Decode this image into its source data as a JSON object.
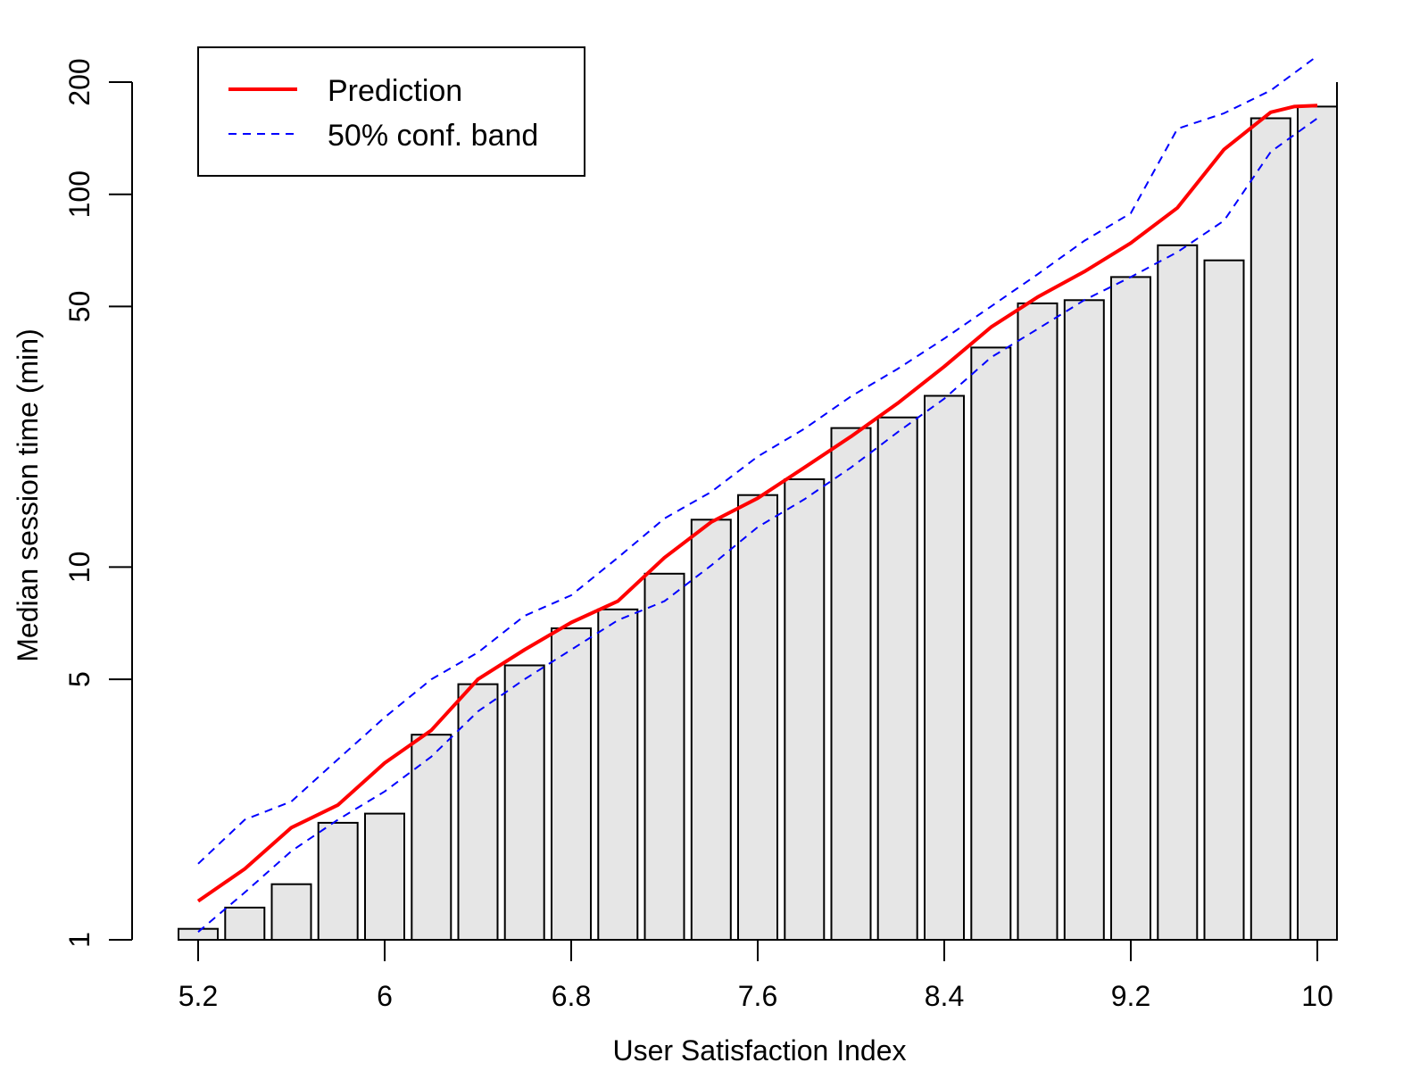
{
  "chart_data": {
    "type": "bar",
    "title": "",
    "xlabel": "User Satisfaction Index",
    "ylabel": "Median session time (min)",
    "y_scale": "log",
    "xlim": [
      5.0,
      10.1
    ],
    "ylim": [
      1,
      220
    ],
    "x_ticks": [
      5.2,
      6,
      6.8,
      7.6,
      8.4,
      9.2,
      10
    ],
    "x_tick_labels": [
      "5.2",
      "6",
      "6.8",
      "7.6",
      "8.4",
      "9.2",
      "10"
    ],
    "y_ticks": [
      1,
      5,
      10,
      50,
      100,
      200
    ],
    "y_tick_labels": [
      "1",
      "5",
      "10",
      "50",
      "100",
      "200"
    ],
    "grid": false,
    "legend_position": "top-left",
    "bar_color": "#e6e6e6",
    "bar_edge_color": "#000000",
    "bars": {
      "x": [
        5.2,
        5.4,
        5.6,
        5.8,
        6.0,
        6.2,
        6.4,
        6.6,
        6.8,
        7.0,
        7.2,
        7.4,
        7.6,
        7.8,
        8.0,
        8.2,
        8.4,
        8.6,
        8.8,
        9.0,
        9.2,
        9.4,
        9.6,
        9.8,
        10.0
      ],
      "values": [
        1.07,
        1.22,
        1.41,
        2.06,
        2.18,
        3.55,
        4.85,
        5.45,
        6.85,
        7.7,
        9.6,
        13.4,
        15.6,
        17.2,
        23.6,
        25.2,
        28.8,
        38.8,
        51.0,
        52.0,
        60.0,
        73.0,
        66.5,
        160.0,
        172.0
      ]
    },
    "series": [
      {
        "name": "Prediction",
        "style": "solid",
        "color": "#ff0000",
        "x": [
          5.2,
          5.4,
          5.6,
          5.8,
          6.0,
          6.2,
          6.4,
          6.6,
          6.8,
          7.0,
          7.2,
          7.4,
          7.6,
          7.8,
          8.0,
          8.2,
          8.4,
          8.6,
          8.8,
          9.0,
          9.2,
          9.4,
          9.6,
          9.8,
          9.9,
          10.0
        ],
        "values": [
          1.27,
          1.55,
          2.0,
          2.3,
          2.98,
          3.65,
          5.0,
          6.0,
          7.1,
          8.1,
          10.6,
          13.2,
          15.3,
          18.5,
          22.4,
          27.5,
          34.5,
          44.0,
          53.0,
          62.0,
          74.0,
          92.0,
          132.0,
          166.0,
          172.0,
          173.0
        ]
      },
      {
        "name": "50% conf. band",
        "style": "dashed",
        "color": "#0000ff",
        "x": [
          5.2,
          5.4,
          5.6,
          5.8,
          6.0,
          6.2,
          6.4,
          6.6,
          6.8,
          7.0,
          7.2,
          7.4,
          7.6,
          7.8,
          8.0,
          8.2,
          8.4,
          8.6,
          8.8,
          9.0,
          9.2,
          9.4,
          9.6,
          9.8,
          10.0
        ],
        "values": [
          1.6,
          2.1,
          2.35,
          3.05,
          3.95,
          5.0,
          5.9,
          7.4,
          8.4,
          10.6,
          13.5,
          15.9,
          19.8,
          23.5,
          28.7,
          34.0,
          41.0,
          50.0,
          61.0,
          75.0,
          89.0,
          150.0,
          165.0,
          190.0,
          235.0
        ]
      },
      {
        "name": "",
        "style": "dashed",
        "color": "#0000ff",
        "x": [
          5.2,
          5.4,
          5.6,
          5.8,
          6.0,
          6.2,
          6.4,
          6.6,
          6.8,
          7.0,
          7.2,
          7.4,
          7.6,
          7.8,
          8.0,
          8.2,
          8.4,
          8.6,
          8.8,
          9.0,
          9.2,
          9.4,
          9.6,
          9.8,
          10.0
        ],
        "values": [
          1.05,
          1.34,
          1.73,
          2.1,
          2.5,
          3.1,
          4.1,
          5.0,
          6.0,
          7.2,
          8.1,
          10.1,
          12.8,
          15.2,
          18.5,
          23.0,
          28.3,
          36.5,
          43.5,
          52.0,
          60.0,
          70.0,
          85.0,
          130.0,
          160.0
        ]
      }
    ],
    "legend": [
      {
        "label": "Prediction",
        "style": "solid",
        "color": "#ff0000"
      },
      {
        "label": "50% conf. band",
        "style": "dashed",
        "color": "#0000ff"
      }
    ]
  }
}
